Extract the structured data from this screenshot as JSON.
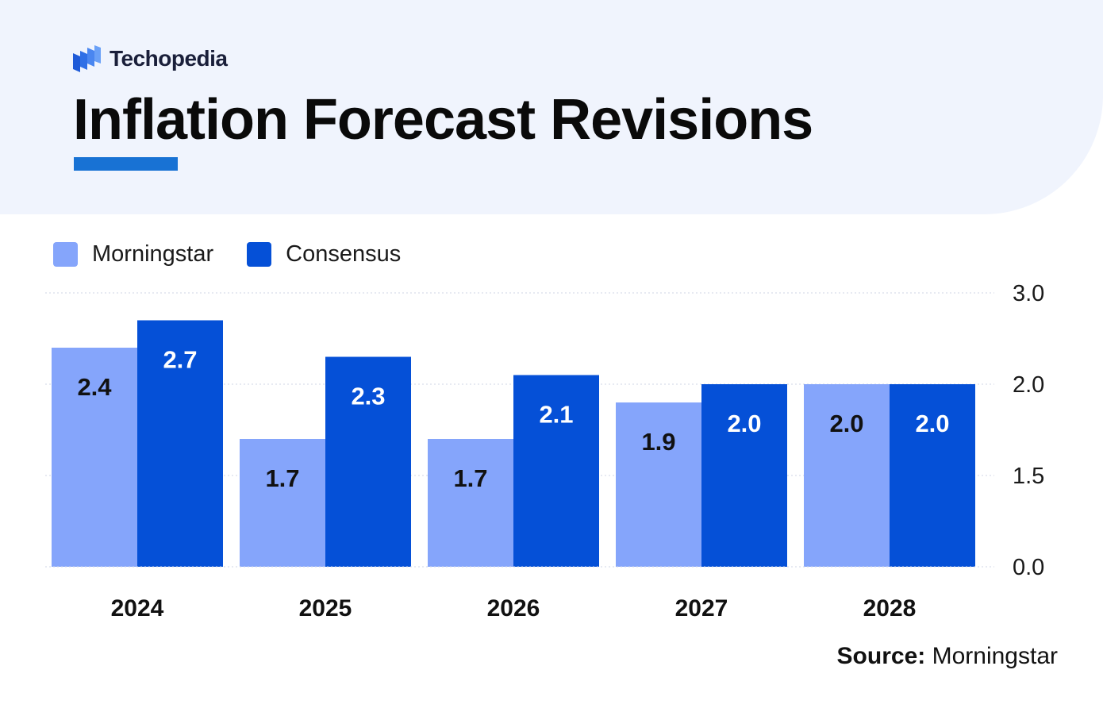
{
  "brand": {
    "name": "Techopedia",
    "logo_icon": "techopedia-logo-icon"
  },
  "title": "Inflation Forecast Revisions",
  "colors": {
    "header_bg": "#f0f4fd",
    "accent_underline": "#1872d4",
    "morningstar": "#85a5fb",
    "consensus": "#0550d7"
  },
  "legend": [
    {
      "label": "Morningstar",
      "color": "#85a5fb"
    },
    {
      "label": "Consensus",
      "color": "#0550d7"
    }
  ],
  "source": {
    "prefix": "Source:",
    "name": "Morningstar"
  },
  "chart_data": {
    "type": "bar",
    "title": "Inflation Forecast Revisions",
    "categories": [
      "2024",
      "2025",
      "2026",
      "2027",
      "2028"
    ],
    "series": [
      {
        "name": "Morningstar",
        "values": [
          2.4,
          1.7,
          1.7,
          1.9,
          2.0
        ],
        "labels": [
          "2.4",
          "1.7",
          "1.7",
          "1.9",
          "2.0"
        ],
        "color": "#85a5fb",
        "label_color": "#111111"
      },
      {
        "name": "Consensus",
        "values": [
          2.7,
          2.3,
          2.1,
          2.0,
          2.0
        ],
        "labels": [
          "2.7",
          "2.3",
          "2.1",
          "2.0",
          "2.0"
        ],
        "color": "#0550d7",
        "label_color": "#ffffff"
      }
    ],
    "y_ticks": [
      {
        "value": 0.0,
        "label": "0.0"
      },
      {
        "value": 1.5,
        "label": "1.5"
      },
      {
        "value": 2.0,
        "label": "2.0"
      },
      {
        "value": 3.0,
        "label": "3.0"
      }
    ],
    "y_axis_position": "right",
    "grid": true,
    "legend_position": "top-left",
    "xlabel": "",
    "ylabel": ""
  }
}
